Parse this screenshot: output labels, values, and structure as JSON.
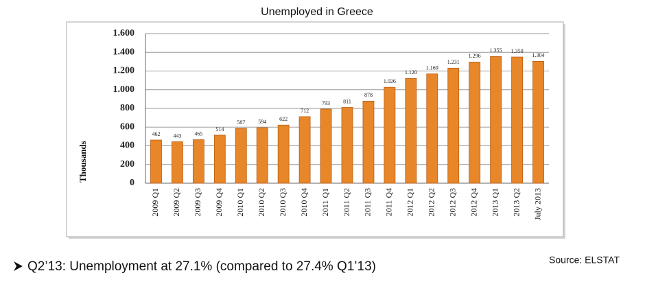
{
  "chart_data": {
    "type": "bar",
    "title": "Unemployed in Greece",
    "y_label": "Thousands",
    "categories": [
      "2009 Q1",
      "2009 Q2",
      "2009 Q3",
      "2009 Q4",
      "2010 Q1",
      "2010 Q2",
      "2010 Q3",
      "2010 Q4",
      "2011 Q1",
      "2011 Q2",
      "2011 Q3",
      "2011 Q4",
      "2012 Q1",
      "2012 Q2",
      "2012 Q3",
      "2012 Q4",
      "2013 Q1",
      "2013 Q2",
      "July 2013"
    ],
    "values": [
      462,
      443,
      465,
      514,
      587,
      594,
      622,
      712,
      793,
      811,
      878,
      1026,
      1120,
      1169,
      1231,
      1296,
      1355,
      1350,
      1304
    ],
    "value_labels": [
      "462",
      "443",
      "465",
      "514",
      "587",
      "594",
      "622",
      "712",
      "793",
      "811",
      "878",
      "1.026",
      "1.120",
      "1.169",
      "1.231",
      "1.296",
      "1.355",
      "1.350",
      "1.304"
    ],
    "color": "#e8862a",
    "ylim": [
      0,
      1600
    ],
    "yticks": [
      0,
      200,
      400,
      600,
      800,
      {
        "value": 1000,
        "label": "1.000"
      },
      {
        "value": 1200,
        "label": "1.200"
      },
      {
        "value": 1400,
        "label": "1.400"
      },
      {
        "value": 1600,
        "label": "1.600"
      }
    ],
    "grid": true,
    "source": "Source: ELSTAT",
    "note": "Q2’13: Unemployment at 27.1% (compared to 27.4% Q1’13)"
  }
}
